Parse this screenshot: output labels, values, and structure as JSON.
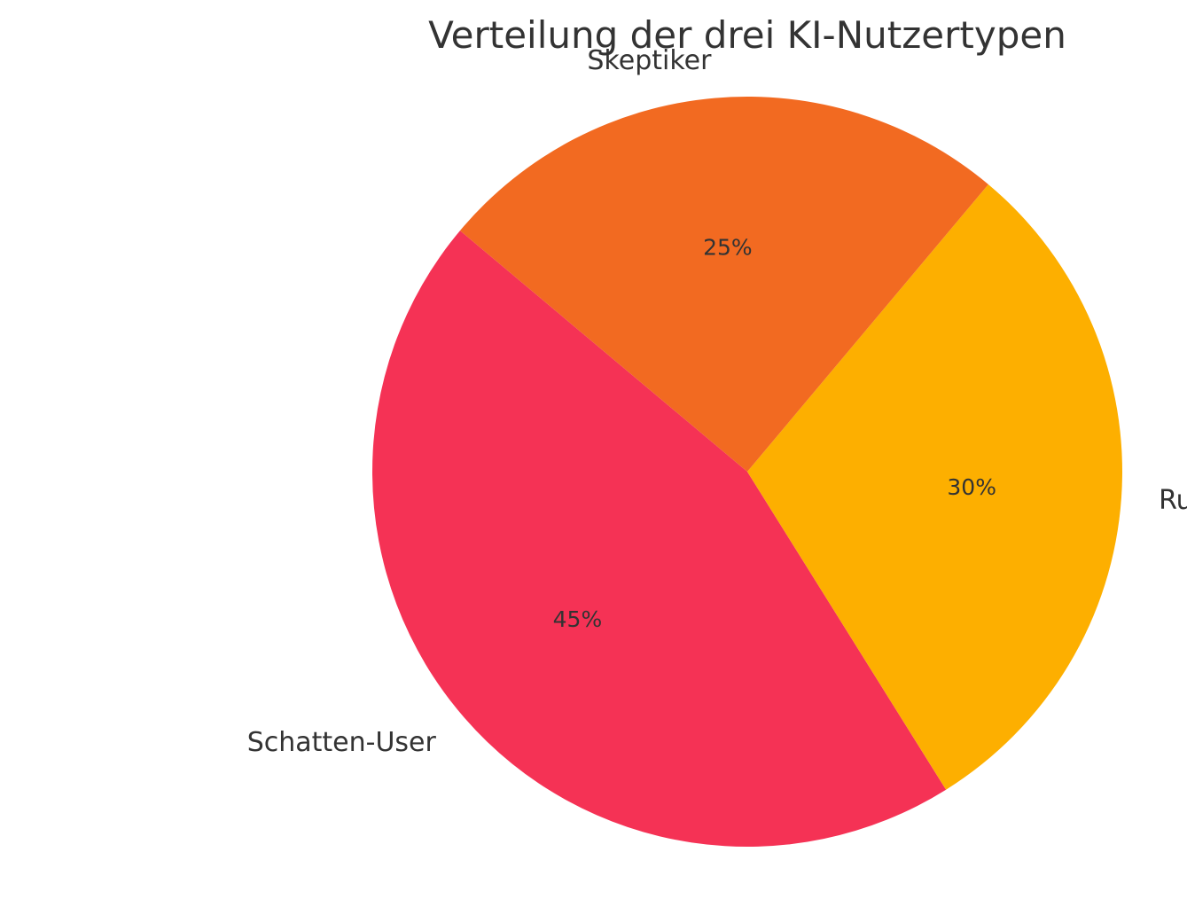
{
  "chart_data": {
    "type": "pie",
    "title": "Verteilung der drei KI-Nutzertypen",
    "start_angle_deg": 140,
    "direction": "counterclockwise",
    "slices": [
      {
        "label": "Schatten-User",
        "value": 45,
        "pct_label": "45%",
        "color": "#F53255"
      },
      {
        "label": "Rudimentär-Anwender",
        "value": 30,
        "pct_label": "30%",
        "color": "#FDAF00"
      },
      {
        "label": "Skeptiker",
        "value": 25,
        "pct_label": "25%",
        "color": "#F26A21"
      }
    ]
  }
}
